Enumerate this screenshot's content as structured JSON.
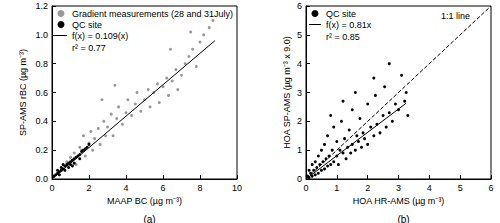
{
  "chart_data": [
    {
      "type": "scatter",
      "title": "(a)",
      "xlabel": "MAAP BC (µg m⁻³)",
      "ylabel": "SP-AMS rBC (µg m⁻³)",
      "xlim": [
        0,
        10
      ],
      "xticks": [
        0,
        2,
        4,
        6,
        8,
        10
      ],
      "ylim": [
        0,
        1.2
      ],
      "yticks": [
        {
          "value": 0,
          "label": "0.0"
        },
        {
          "value": 0.2,
          "label": "0.2"
        },
        {
          "value": 0.4,
          "label": "0.4"
        },
        {
          "value": 0.6,
          "label": "0.6"
        },
        {
          "value": 0.8,
          "label": "0.8"
        },
        {
          "value": 1.0,
          "label": "1.0"
        },
        {
          "value": 1.2,
          "label": "1.2"
        }
      ],
      "grid": false,
      "legend": "top-left",
      "annotations": [
        "r² = 0.77"
      ],
      "series": [
        {
          "name": "Gradient measurements (28 and 31July)",
          "type": "scatter",
          "color": "#999999",
          "marker": "circle",
          "x": [
            0.8,
            1.0,
            1.2,
            1.3,
            1.5,
            1.6,
            1.7,
            1.8,
            2.0,
            2.1,
            2.2,
            2.3,
            2.5,
            2.6,
            2.8,
            2.9,
            3.0,
            3.2,
            3.3,
            3.5,
            3.6,
            3.8,
            4.0,
            4.1,
            4.3,
            4.5,
            4.6,
            4.8,
            5.0,
            5.2,
            5.3,
            5.5,
            5.7,
            5.8,
            6.0,
            6.2,
            6.3,
            6.5,
            6.7,
            6.8,
            7.0,
            7.2,
            7.4,
            7.6,
            7.8,
            8.0,
            8.2,
            8.5,
            8.7,
            7.5,
            6.4,
            2.7,
            3.4
          ],
          "values": [
            0.12,
            0.15,
            0.18,
            0.1,
            0.22,
            0.2,
            0.3,
            0.16,
            0.25,
            0.33,
            0.2,
            0.28,
            0.35,
            0.24,
            0.4,
            0.3,
            0.36,
            0.45,
            0.3,
            0.42,
            0.5,
            0.38,
            0.46,
            0.55,
            0.44,
            0.52,
            0.6,
            0.47,
            0.55,
            0.62,
            0.5,
            0.6,
            0.66,
            0.53,
            0.64,
            0.7,
            0.58,
            0.68,
            0.76,
            0.62,
            0.72,
            0.8,
            0.85,
            0.9,
            0.78,
            0.95,
            1.0,
            1.05,
            1.1,
            1.02,
            0.9,
            0.55,
            0.65
          ]
        },
        {
          "name": "QC site",
          "type": "scatter",
          "color": "#000000",
          "marker": "circle",
          "x": [
            0.1,
            0.2,
            0.3,
            0.3,
            0.4,
            0.5,
            0.5,
            0.6,
            0.7,
            0.7,
            0.8,
            0.9,
            0.9,
            1.0,
            1.0,
            1.1,
            1.2,
            1.2,
            1.3,
            1.4,
            1.5,
            1.5,
            1.6,
            1.7,
            1.8,
            1.9,
            2.0,
            0.4,
            0.6,
            1.1
          ],
          "values": [
            0.02,
            0.03,
            0.04,
            0.06,
            0.05,
            0.06,
            0.08,
            0.07,
            0.09,
            0.06,
            0.1,
            0.11,
            0.08,
            0.12,
            0.1,
            0.13,
            0.14,
            0.11,
            0.15,
            0.16,
            0.17,
            0.14,
            0.19,
            0.2,
            0.21,
            0.22,
            0.24,
            0.03,
            0.1,
            0.09
          ]
        },
        {
          "name": "f(x) = 0.109(x)",
          "type": "line",
          "color": "#000000",
          "line_style": "solid",
          "x": [
            0,
            8.8
          ],
          "values": [
            0,
            0.959
          ]
        }
      ]
    },
    {
      "type": "scatter",
      "title": "(b)",
      "xlabel": "HOA HR-AMS (µg m⁻³)",
      "ylabel": "HOA SP-AMS (µg m⁻³ x 9.0)",
      "xlim": [
        0,
        6
      ],
      "xticks": [
        0,
        1,
        2,
        3,
        4,
        5,
        6
      ],
      "ylim": [
        0,
        6
      ],
      "yticks": [
        0,
        1,
        2,
        3,
        4,
        5,
        6
      ],
      "grid": false,
      "legend": "top-left",
      "annotations": [
        "r² = 0.85"
      ],
      "series": [
        {
          "name": "QC site",
          "type": "scatter",
          "color": "#000000",
          "marker": "circle",
          "x": [
            0.05,
            0.1,
            0.1,
            0.15,
            0.2,
            0.2,
            0.25,
            0.3,
            0.3,
            0.35,
            0.4,
            0.4,
            0.45,
            0.5,
            0.5,
            0.55,
            0.6,
            0.6,
            0.65,
            0.7,
            0.7,
            0.75,
            0.8,
            0.85,
            0.9,
            0.9,
            1.0,
            1.0,
            1.05,
            1.1,
            1.15,
            1.2,
            1.25,
            1.3,
            1.35,
            1.4,
            1.45,
            1.5,
            1.5,
            1.6,
            1.65,
            1.7,
            1.75,
            1.8,
            1.85,
            1.9,
            2.0,
            2.0,
            2.1,
            2.2,
            2.25,
            2.3,
            2.4,
            2.5,
            2.55,
            2.6,
            2.7,
            2.8,
            2.9,
            3.0,
            3.1,
            3.2,
            3.3,
            1.2,
            0.8,
            2.2,
            1.6,
            2.7,
            3.25
          ],
          "values": [
            0.1,
            0.05,
            0.3,
            0.2,
            0.1,
            0.5,
            0.3,
            0.15,
            0.6,
            0.4,
            0.2,
            0.8,
            0.5,
            0.3,
            1.0,
            0.6,
            0.35,
            1.2,
            0.7,
            0.45,
            1.5,
            0.8,
            0.5,
            1.0,
            0.6,
            1.8,
            0.8,
            1.3,
            0.5,
            1.0,
            2.0,
            0.9,
            1.4,
            0.7,
            1.1,
            1.7,
            0.9,
            1.2,
            2.4,
            1.0,
            1.5,
            1.3,
            2.1,
            1.1,
            1.6,
            1.4,
            2.6,
            1.2,
            1.8,
            1.5,
            2.9,
            1.9,
            1.6,
            2.2,
            3.2,
            1.8,
            2.3,
            2.0,
            2.6,
            2.4,
            3.6,
            2.7,
            2.2,
            2.7,
            2.2,
            3.5,
            3.0,
            4.0,
            3.0
          ]
        },
        {
          "name": "f(x) = 0.81x",
          "type": "line",
          "color": "#000000",
          "line_style": "solid",
          "x": [
            0,
            3.25
          ],
          "values": [
            0,
            2.63
          ]
        },
        {
          "name": "1:1 line",
          "type": "line",
          "color": "#000000",
          "line_style": "dashed",
          "x": [
            0,
            6
          ],
          "values": [
            0,
            6
          ]
        }
      ]
    }
  ]
}
